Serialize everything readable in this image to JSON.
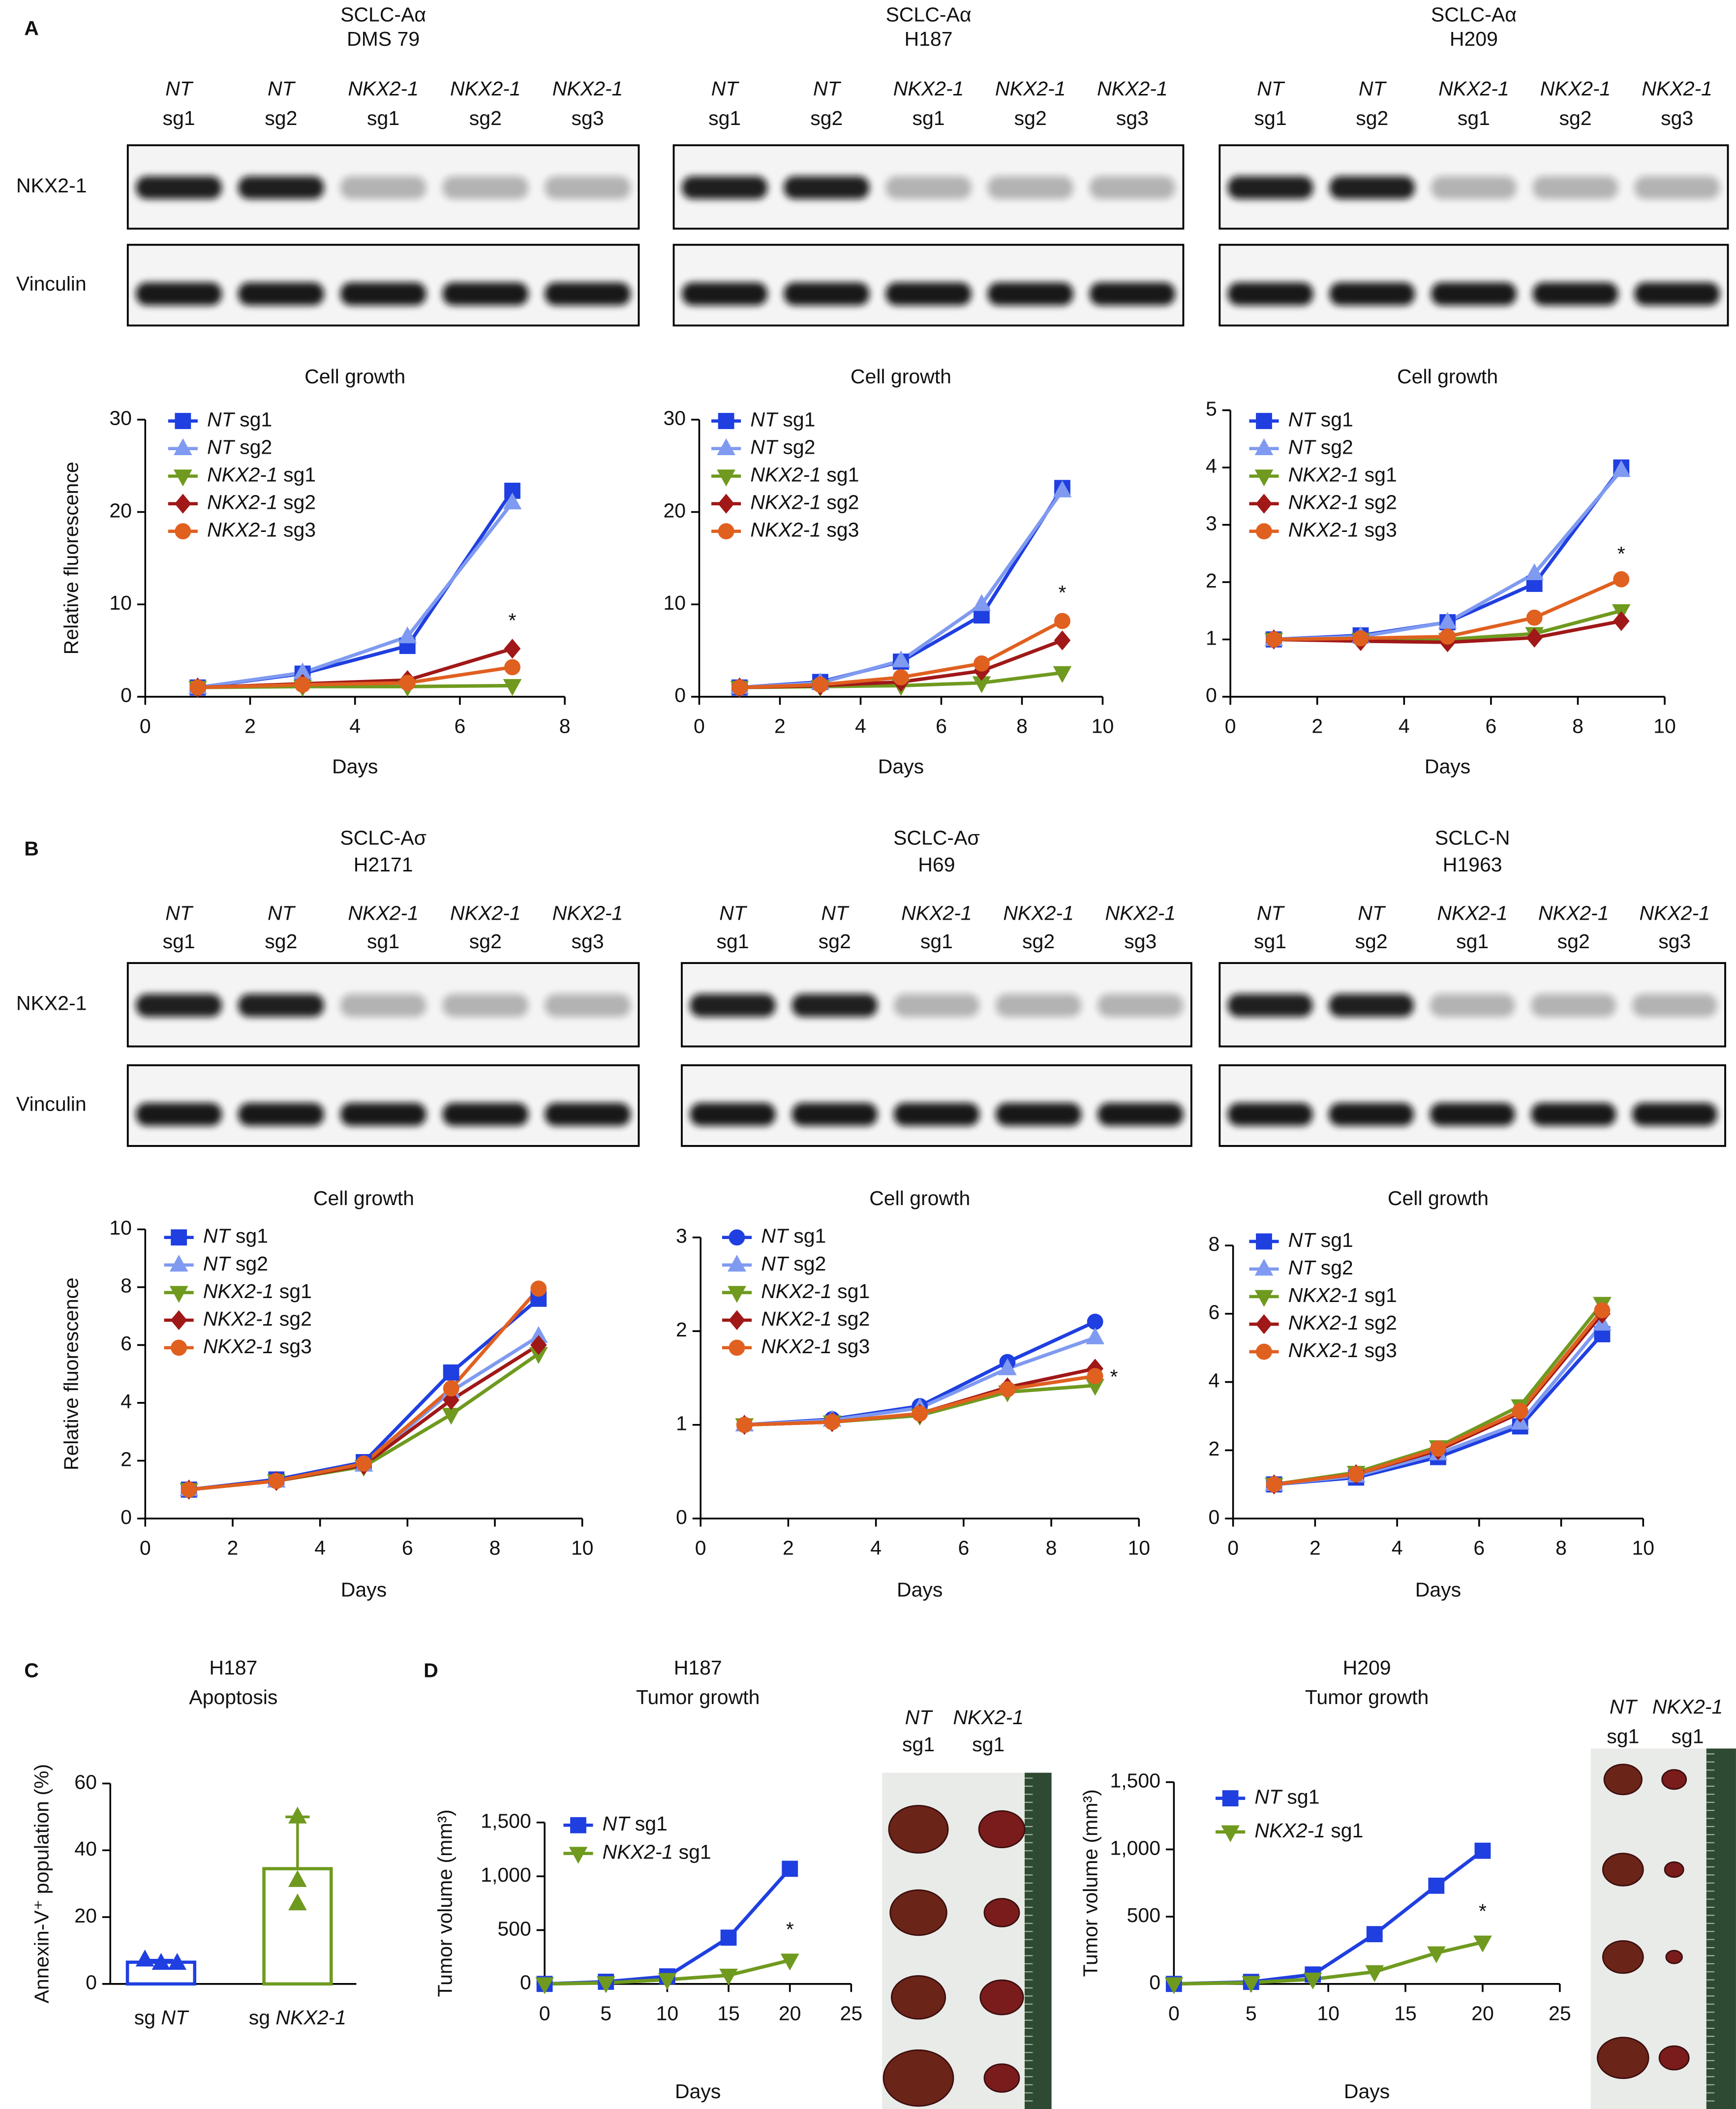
{
  "panel_labels": [
    "A",
    "B",
    "C",
    "D"
  ],
  "blot_rows": [
    {
      "row_labels": [
        "NKX2-1",
        "Vinculin"
      ],
      "blots": [
        {
          "subtype": "SCLC-Aα",
          "cell_line": "DMS 79",
          "color": "#cc2222",
          "lanes": [
            [
              "NT",
              "sg1"
            ],
            [
              "NT",
              "sg2"
            ],
            [
              "NKX2-1",
              "sg1"
            ],
            [
              "NKX2-1",
              "sg2"
            ],
            [
              "NKX2-1",
              "sg3"
            ]
          ]
        },
        {
          "subtype": "SCLC-Aα",
          "cell_line": "H187",
          "color": "#cc2222",
          "lanes": [
            [
              "NT",
              "sg1"
            ],
            [
              "NT",
              "sg2"
            ],
            [
              "NKX2-1",
              "sg1"
            ],
            [
              "NKX2-1",
              "sg2"
            ],
            [
              "NKX2-1",
              "sg3"
            ]
          ]
        },
        {
          "subtype": "SCLC-Aα",
          "cell_line": "H209",
          "color": "#cc2222",
          "lanes": [
            [
              "NT",
              "sg1"
            ],
            [
              "NT",
              "sg2"
            ],
            [
              "NKX2-1",
              "sg1"
            ],
            [
              "NKX2-1",
              "sg2"
            ],
            [
              "NKX2-1",
              "sg3"
            ]
          ]
        }
      ]
    },
    {
      "row_labels": [
        "NKX2-1",
        "Vinculin"
      ],
      "blots": [
        {
          "subtype": "SCLC-Aσ",
          "cell_line": "H2171",
          "color": "#33dd33",
          "lanes": [
            [
              "NT",
              "sg1"
            ],
            [
              "NT",
              "sg2"
            ],
            [
              "NKX2-1",
              "sg1"
            ],
            [
              "NKX2-1",
              "sg2"
            ],
            [
              "NKX2-1",
              "sg3"
            ]
          ]
        },
        {
          "subtype": "SCLC-Aσ",
          "cell_line": "H69",
          "color": "#33dd33",
          "lanes": [
            [
              "NT",
              "sg1"
            ],
            [
              "NT",
              "sg2"
            ],
            [
              "NKX2-1",
              "sg1"
            ],
            [
              "NKX2-1",
              "sg2"
            ],
            [
              "NKX2-1",
              "sg3"
            ]
          ]
        },
        {
          "subtype": "SCLC-N",
          "cell_line": "H1963",
          "color": "#5a2fe6",
          "lanes": [
            [
              "NT",
              "sg1"
            ],
            [
              "NT",
              "sg2"
            ],
            [
              "NKX2-1",
              "sg1"
            ],
            [
              "NKX2-1",
              "sg2"
            ],
            [
              "NKX2-1",
              "sg3"
            ]
          ]
        }
      ]
    }
  ],
  "chart_data": [
    {
      "type": "line",
      "title": "Cell growth",
      "xlabel": "Days",
      "ylabel": "Relative fluorescence",
      "x": [
        1,
        3,
        5,
        7
      ],
      "xlim": [
        0,
        8
      ],
      "xticks": [
        0,
        2,
        4,
        6,
        8
      ],
      "ylim": [
        0,
        30
      ],
      "yticks": [
        0,
        10,
        20,
        30
      ],
      "annotation": "*",
      "series": [
        {
          "name": "NT sg1",
          "color": "#1f3fe0",
          "marker": "square",
          "values": [
            1,
            2.5,
            5.5,
            22.3
          ]
        },
        {
          "name": "NT sg2",
          "color": "#7f9af0",
          "marker": "triangle-up",
          "values": [
            1,
            2.6,
            6.5,
            21
          ]
        },
        {
          "name": "NKX2-1 sg1",
          "color": "#6f9a1f",
          "marker": "triangle-down",
          "values": [
            1,
            1.1,
            1.1,
            1.2
          ]
        },
        {
          "name": "NKX2-1 sg2",
          "color": "#a01818",
          "marker": "diamond",
          "values": [
            1,
            1.4,
            1.8,
            5.2
          ]
        },
        {
          "name": "NKX2-1 sg3",
          "color": "#e06020",
          "marker": "circle",
          "values": [
            1,
            1.3,
            1.5,
            3.2
          ]
        }
      ]
    },
    {
      "type": "line",
      "title": "Cell growth",
      "xlabel": "Days",
      "x": [
        1,
        3,
        5,
        7,
        9
      ],
      "xlim": [
        0,
        10
      ],
      "xticks": [
        0,
        2,
        4,
        6,
        8,
        10
      ],
      "ylim": [
        0,
        30
      ],
      "yticks": [
        0,
        10,
        20,
        30
      ],
      "annotation": "*",
      "series": [
        {
          "name": "NT sg1",
          "color": "#1f3fe0",
          "marker": "square",
          "values": [
            1,
            1.6,
            3.8,
            8.8,
            22.6
          ]
        },
        {
          "name": "NT sg2",
          "color": "#7f9af0",
          "marker": "triangle-up",
          "values": [
            1,
            1.5,
            3.9,
            10,
            22.3
          ]
        },
        {
          "name": "NKX2-1 sg1",
          "color": "#6f9a1f",
          "marker": "triangle-down",
          "values": [
            1,
            1.1,
            1.2,
            1.5,
            2.6
          ]
        },
        {
          "name": "NKX2-1 sg2",
          "color": "#a01818",
          "marker": "diamond",
          "values": [
            1,
            1.2,
            1.6,
            2.8,
            6.1
          ]
        },
        {
          "name": "NKX2-1 sg3",
          "color": "#e06020",
          "marker": "circle",
          "values": [
            1,
            1.3,
            2.1,
            3.6,
            8.2
          ]
        }
      ]
    },
    {
      "type": "line",
      "title": "Cell growth",
      "xlabel": "Days",
      "x": [
        1,
        3,
        5,
        7,
        9
      ],
      "xlim": [
        0,
        10
      ],
      "xticks": [
        0,
        2,
        4,
        6,
        8,
        10
      ],
      "ylim": [
        0,
        5
      ],
      "yticks": [
        0,
        1,
        2,
        3,
        4,
        5
      ],
      "annotation": "*",
      "series": [
        {
          "name": "NT sg1",
          "color": "#1f3fe0",
          "marker": "square",
          "values": [
            1,
            1.07,
            1.3,
            1.97,
            4.0
          ]
        },
        {
          "name": "NT sg2",
          "color": "#7f9af0",
          "marker": "triangle-up",
          "values": [
            1,
            1.05,
            1.3,
            2.15,
            3.95
          ]
        },
        {
          "name": "NKX2-1 sg1",
          "color": "#6f9a1f",
          "marker": "triangle-down",
          "values": [
            1,
            1.0,
            1.0,
            1.1,
            1.5
          ]
        },
        {
          "name": "NKX2-1 sg2",
          "color": "#a01818",
          "marker": "diamond",
          "values": [
            1,
            0.97,
            0.95,
            1.03,
            1.32
          ]
        },
        {
          "name": "NKX2-1 sg3",
          "color": "#e06020",
          "marker": "circle",
          "values": [
            1,
            1.02,
            1.05,
            1.38,
            2.05
          ]
        }
      ]
    },
    {
      "type": "line",
      "title": "Cell growth",
      "xlabel": "Days",
      "ylabel": "Relative fluorescence",
      "x": [
        1,
        3,
        5,
        7,
        9
      ],
      "xlim": [
        0,
        10
      ],
      "xticks": [
        0,
        2,
        4,
        6,
        8,
        10
      ],
      "ylim": [
        0,
        10
      ],
      "yticks": [
        0,
        2,
        4,
        6,
        8,
        10
      ],
      "series": [
        {
          "name": "NT sg1",
          "color": "#1f3fe0",
          "marker": "square",
          "values": [
            1,
            1.35,
            1.95,
            5.05,
            7.6
          ]
        },
        {
          "name": "NT sg2",
          "color": "#7f9af0",
          "marker": "triangle-up",
          "values": [
            1,
            1.3,
            1.85,
            4.4,
            6.3
          ]
        },
        {
          "name": "NKX2-1 sg1",
          "color": "#6f9a1f",
          "marker": "triangle-down",
          "values": [
            1,
            1.3,
            1.8,
            3.6,
            5.7
          ]
        },
        {
          "name": "NKX2-1 sg2",
          "color": "#a01818",
          "marker": "diamond",
          "values": [
            1,
            1.3,
            1.85,
            4.1,
            6.0
          ]
        },
        {
          "name": "NKX2-1 sg3",
          "color": "#e06020",
          "marker": "circle",
          "values": [
            1,
            1.3,
            1.9,
            4.5,
            7.95
          ]
        }
      ]
    },
    {
      "type": "line",
      "title": "Cell growth",
      "xlabel": "Days",
      "x": [
        1,
        3,
        5,
        7,
        9
      ],
      "xlim": [
        0,
        10
      ],
      "xticks": [
        0,
        2,
        4,
        6,
        8,
        10
      ],
      "ylim": [
        0,
        3
      ],
      "yticks": [
        0,
        1,
        2,
        3
      ],
      "annotation": "*",
      "series": [
        {
          "name": "NT sg1",
          "color": "#1f3fe0",
          "marker": "circle",
          "values": [
            1,
            1.06,
            1.2,
            1.67,
            2.1
          ]
        },
        {
          "name": "NT sg2",
          "color": "#7f9af0",
          "marker": "triangle-up",
          "values": [
            1,
            1.05,
            1.18,
            1.6,
            1.93
          ]
        },
        {
          "name": "NKX2-1 sg1",
          "color": "#6f9a1f",
          "marker": "triangle-down",
          "values": [
            1,
            1.03,
            1.1,
            1.35,
            1.42
          ]
        },
        {
          "name": "NKX2-1 sg2",
          "color": "#a01818",
          "marker": "diamond",
          "values": [
            1,
            1.03,
            1.12,
            1.4,
            1.6
          ]
        },
        {
          "name": "NKX2-1 sg3",
          "color": "#e06020",
          "marker": "circle",
          "values": [
            1,
            1.03,
            1.12,
            1.38,
            1.52
          ]
        }
      ]
    },
    {
      "type": "line",
      "title": "Cell growth",
      "xlabel": "Days",
      "x": [
        1,
        3,
        5,
        7,
        9
      ],
      "xlim": [
        0,
        10
      ],
      "xticks": [
        0,
        2,
        4,
        6,
        8,
        10
      ],
      "ylim": [
        0,
        8
      ],
      "yticks": [
        0,
        2,
        4,
        6,
        8
      ],
      "series": [
        {
          "name": "NT sg1",
          "color": "#1f3fe0",
          "marker": "square",
          "values": [
            1,
            1.2,
            1.8,
            2.7,
            5.4
          ]
        },
        {
          "name": "NT sg2",
          "color": "#7f9af0",
          "marker": "triangle-up",
          "values": [
            1,
            1.25,
            1.9,
            2.8,
            5.7
          ]
        },
        {
          "name": "NKX2-1 sg1",
          "color": "#6f9a1f",
          "marker": "triangle-down",
          "values": [
            1,
            1.35,
            2.1,
            3.3,
            6.3
          ]
        },
        {
          "name": "NKX2-1 sg2",
          "color": "#a01818",
          "marker": "diamond",
          "values": [
            1,
            1.3,
            2.0,
            3.1,
            6.0
          ]
        },
        {
          "name": "NKX2-1 sg3",
          "color": "#e06020",
          "marker": "circle",
          "values": [
            1,
            1.3,
            2.05,
            3.15,
            6.1
          ]
        }
      ]
    },
    {
      "type": "bar",
      "cell_line": "H187",
      "title_color": "#cc2222",
      "title": "Apoptosis",
      "ylabel": "Annexin-V⁺ population (%)",
      "categories": [
        "sg NT",
        "sg NKX2-1"
      ],
      "values": [
        6.5,
        34.5
      ],
      "errors": [
        0.6,
        15.5
      ],
      "points": [
        [
          7.2,
          6.2,
          6.2
        ],
        [
          50,
          31,
          24
        ]
      ],
      "colors": [
        "#1f3fe0",
        "#6f9a1f"
      ],
      "ylim": [
        0,
        60
      ],
      "yticks": [
        0,
        20,
        40,
        60
      ]
    },
    {
      "type": "line",
      "cell_line": "H187",
      "title_color": "#cc2222",
      "title": "Tumor growth",
      "xlabel": "Days",
      "ylabel": "Tumor volume (mm³)",
      "x": [
        0,
        5,
        10,
        15,
        20
      ],
      "xlim": [
        0,
        25
      ],
      "xticks": [
        0,
        5,
        10,
        15,
        20,
        25
      ],
      "ylim": [
        0,
        1500
      ],
      "yticks": [
        0,
        500,
        {
          "value": 1000,
          "label": "1,000"
        },
        {
          "value": 1500,
          "label": "1,500"
        }
      ],
      "annotation": "*",
      "series": [
        {
          "name": "NT sg1",
          "color": "#1f3fe0",
          "marker": "square",
          "values": [
            0,
            20,
            70,
            430,
            1070
          ]
        },
        {
          "name": "NKX2-1 sg1",
          "color": "#6f9a1f",
          "marker": "triangle-down",
          "values": [
            0,
            10,
            40,
            80,
            220
          ]
        }
      ]
    },
    {
      "type": "line",
      "cell_line": "H209",
      "title_color": "#cc2222",
      "title": "Tumor growth",
      "xlabel": "Days",
      "ylabel": "Tumor volume (mm³)",
      "x": [
        0,
        5,
        9,
        13,
        17,
        20
      ],
      "xlim": [
        0,
        25
      ],
      "xticks": [
        0,
        5,
        10,
        15,
        20,
        25
      ],
      "ylim": [
        0,
        1500
      ],
      "yticks": [
        0,
        500,
        {
          "value": 1000,
          "label": "1,000"
        },
        {
          "value": 1500,
          "label": "1,500"
        }
      ],
      "annotation": "*",
      "series": [
        {
          "name": "NT sg1",
          "color": "#1f3fe0",
          "marker": "square",
          "values": [
            0,
            15,
            70,
            370,
            730,
            990
          ]
        },
        {
          "name": "NKX2-1 sg1",
          "color": "#6f9a1f",
          "marker": "triangle-down",
          "values": [
            0,
            10,
            35,
            90,
            230,
            310
          ]
        }
      ]
    }
  ],
  "photos": [
    {
      "lanes": [
        [
          "NT",
          "sg1"
        ],
        [
          "NKX2-1",
          "sg1"
        ]
      ]
    },
    {
      "lanes": [
        [
          "NT",
          "sg1"
        ],
        [
          "NKX2-1",
          "sg1"
        ]
      ]
    }
  ]
}
